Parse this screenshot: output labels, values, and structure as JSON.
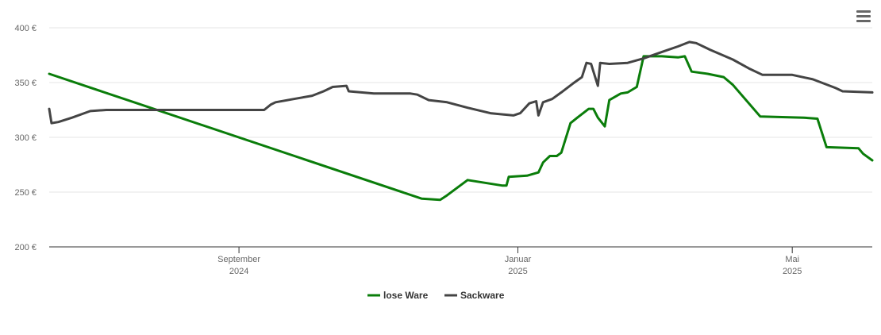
{
  "colors": {
    "lose": "#0a7d0a",
    "sack": "#444444",
    "grid": "#e6e6e6",
    "axis": "#333333"
  },
  "chart_data": {
    "type": "line",
    "y_ticks": [
      "200 €",
      "250 €",
      "300 €",
      "350 €",
      "400 €"
    ],
    "y_tick_values": [
      200,
      250,
      300,
      350,
      400
    ],
    "ylim": [
      200,
      410
    ],
    "xlim": [
      "2024-06-10",
      "2025-06-05"
    ],
    "x_ticks": [
      {
        "date": "2024-09-01",
        "month": "September",
        "year": "2024"
      },
      {
        "date": "2025-01-01",
        "month": "Januar",
        "year": "2025"
      },
      {
        "date": "2025-05-01",
        "month": "Mai",
        "year": "2025"
      }
    ],
    "grid": true,
    "legend_position": "bottom",
    "series": [
      {
        "name": "lose Ware",
        "color": "#0a7d0a",
        "points": [
          [
            "2024-06-10",
            358
          ],
          [
            "2024-11-20",
            244
          ],
          [
            "2024-11-28",
            243
          ],
          [
            "2024-12-01",
            247
          ],
          [
            "2024-12-10",
            261
          ],
          [
            "2024-12-25",
            256
          ],
          [
            "2024-12-27",
            256
          ],
          [
            "2024-12-28",
            264
          ],
          [
            "2025-01-05",
            265
          ],
          [
            "2025-01-10",
            268
          ],
          [
            "2025-01-12",
            277
          ],
          [
            "2025-01-15",
            283
          ],
          [
            "2025-01-18",
            283
          ],
          [
            "2025-01-20",
            286
          ],
          [
            "2025-01-24",
            313
          ],
          [
            "2025-01-27",
            318
          ],
          [
            "2025-02-01",
            326
          ],
          [
            "2025-02-03",
            326
          ],
          [
            "2025-02-05",
            318
          ],
          [
            "2025-02-08",
            310
          ],
          [
            "2025-02-10",
            334
          ],
          [
            "2025-02-15",
            340
          ],
          [
            "2025-02-18",
            341
          ],
          [
            "2025-02-22",
            346
          ],
          [
            "2025-02-25",
            374
          ],
          [
            "2025-03-05",
            374
          ],
          [
            "2025-03-12",
            373
          ],
          [
            "2025-03-15",
            374
          ],
          [
            "2025-03-18",
            360
          ],
          [
            "2025-03-25",
            358
          ],
          [
            "2025-04-01",
            355
          ],
          [
            "2025-04-05",
            348
          ],
          [
            "2025-04-17",
            319
          ],
          [
            "2025-05-06",
            318
          ],
          [
            "2025-05-12",
            317
          ],
          [
            "2025-05-16",
            291
          ],
          [
            "2025-05-30",
            290
          ],
          [
            "2025-06-01",
            285
          ],
          [
            "2025-06-05",
            279
          ]
        ]
      },
      {
        "name": "Sackware",
        "color": "#444444",
        "points": [
          [
            "2024-06-10",
            326
          ],
          [
            "2024-06-11",
            313
          ],
          [
            "2024-06-14",
            314
          ],
          [
            "2024-06-20",
            318
          ],
          [
            "2024-06-28",
            324
          ],
          [
            "2024-07-05",
            325
          ],
          [
            "2024-08-15",
            325
          ],
          [
            "2024-09-12",
            325
          ],
          [
            "2024-09-15",
            330
          ],
          [
            "2024-09-17",
            332
          ],
          [
            "2024-09-25",
            335
          ],
          [
            "2024-10-03",
            338
          ],
          [
            "2024-10-08",
            342
          ],
          [
            "2024-10-12",
            346
          ],
          [
            "2024-10-18",
            347
          ],
          [
            "2024-10-19",
            342
          ],
          [
            "2024-10-30",
            340
          ],
          [
            "2024-11-15",
            340
          ],
          [
            "2024-11-18",
            339
          ],
          [
            "2024-11-23",
            334
          ],
          [
            "2024-12-01",
            332
          ],
          [
            "2024-12-10",
            327
          ],
          [
            "2024-12-20",
            322
          ],
          [
            "2024-12-30",
            320
          ],
          [
            "2025-01-02",
            322
          ],
          [
            "2025-01-06",
            331
          ],
          [
            "2025-01-09",
            333
          ],
          [
            "2025-01-10",
            320
          ],
          [
            "2025-01-12",
            332
          ],
          [
            "2025-01-16",
            335
          ],
          [
            "2025-01-20",
            341
          ],
          [
            "2025-01-25",
            349
          ],
          [
            "2025-01-29",
            355
          ],
          [
            "2025-01-31",
            368
          ],
          [
            "2025-02-02",
            367
          ],
          [
            "2025-02-05",
            347
          ],
          [
            "2025-02-06",
            368
          ],
          [
            "2025-02-10",
            367
          ],
          [
            "2025-02-18",
            368
          ],
          [
            "2025-02-25",
            372
          ],
          [
            "2025-03-05",
            378
          ],
          [
            "2025-03-12",
            383
          ],
          [
            "2025-03-17",
            387
          ],
          [
            "2025-03-20",
            386
          ],
          [
            "2025-03-26",
            380
          ],
          [
            "2025-04-05",
            371
          ],
          [
            "2025-04-12",
            363
          ],
          [
            "2025-04-18",
            357
          ],
          [
            "2025-04-25",
            357
          ],
          [
            "2025-05-01",
            357
          ],
          [
            "2025-05-10",
            353
          ],
          [
            "2025-05-20",
            345
          ],
          [
            "2025-05-23",
            342
          ],
          [
            "2025-06-05",
            341
          ]
        ]
      }
    ]
  }
}
